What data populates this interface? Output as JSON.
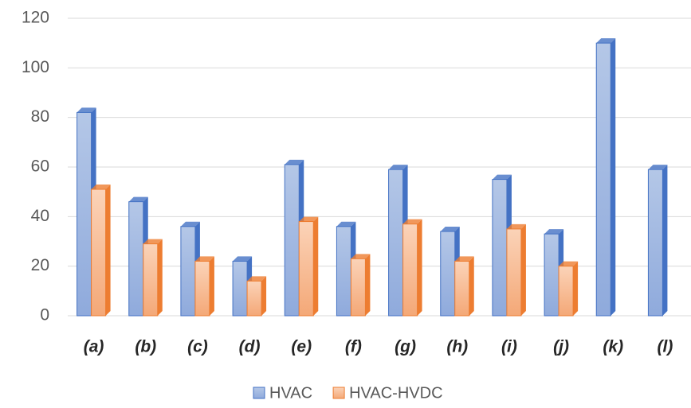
{
  "chart_data": {
    "type": "bar",
    "categories": [
      "(a)",
      "(b)",
      "(c)",
      "(d)",
      "(e)",
      "(f)",
      "(g)",
      "(h)",
      "(i)",
      "(j)",
      "(k)",
      "(l)"
    ],
    "series": [
      {
        "name": "HVAC",
        "color": "#4472c4",
        "values": [
          82,
          46,
          36,
          22,
          61,
          36,
          59,
          34,
          55,
          33,
          110,
          59
        ]
      },
      {
        "name": "HVAC-HVDC",
        "color": "#ed7d31",
        "values": [
          51,
          29,
          22,
          14,
          38,
          23,
          37,
          22,
          35,
          20,
          null,
          null
        ]
      }
    ],
    "ylim": [
      0,
      120
    ],
    "yticks": [
      0,
      20,
      40,
      60,
      80,
      100,
      120
    ],
    "grid": true
  }
}
